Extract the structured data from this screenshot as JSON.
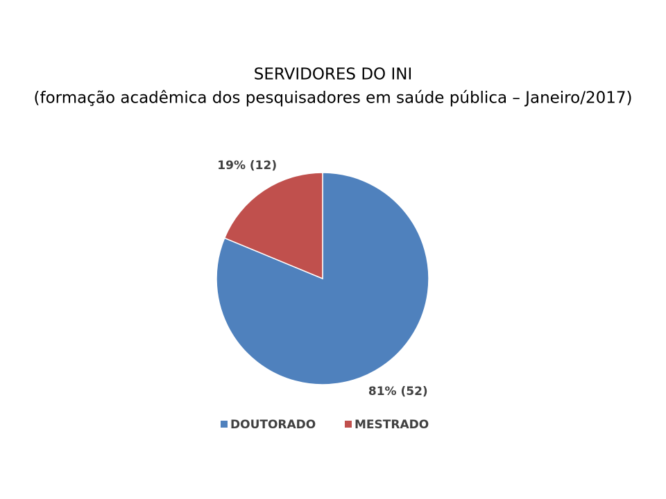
{
  "chart_data": {
    "type": "pie",
    "title": "SERVIDORES DO INI",
    "subtitle": "(formação acadêmica dos pesquisadores em saúde pública – Janeiro/2017)",
    "categories": [
      "DOUTORADO",
      "MESTRADO"
    ],
    "values": [
      52,
      12
    ],
    "value_labels": [
      "81% (52)",
      "19% (12)"
    ],
    "colors": [
      "#4f81bd",
      "#c0504d"
    ],
    "legend": "bottom"
  }
}
